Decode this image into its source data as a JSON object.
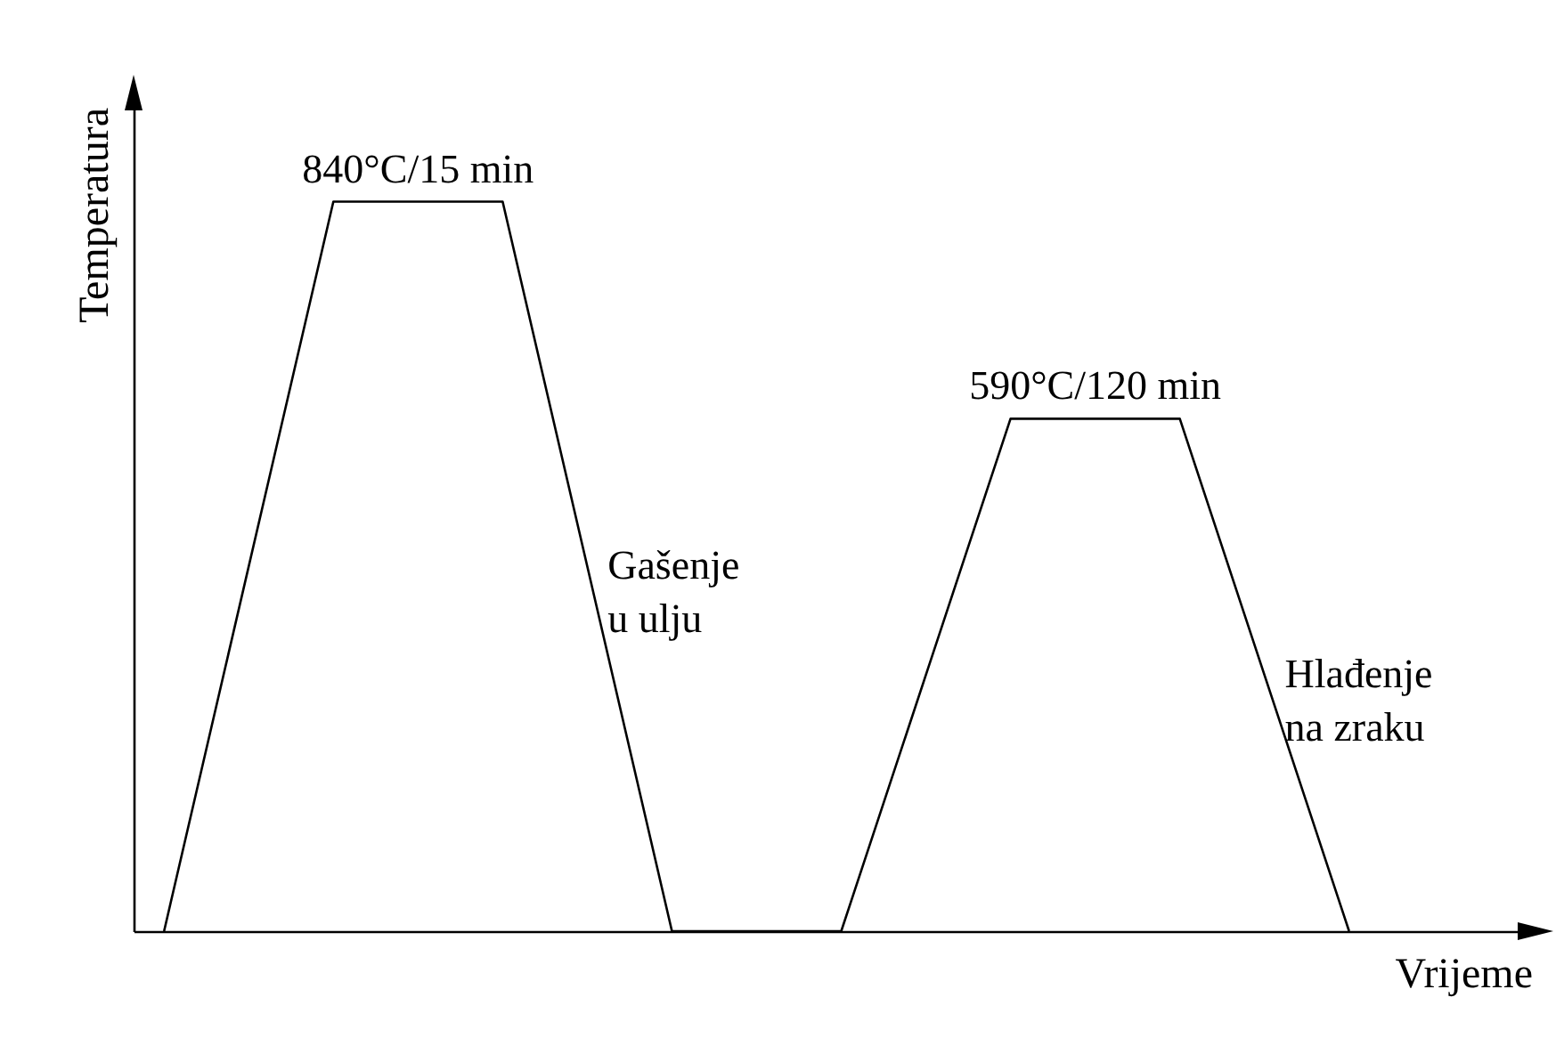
{
  "chart_data": {
    "type": "line",
    "tick_labels": false,
    "xlabel": "Vrijeme",
    "ylabel": "Temperatura",
    "color": "#000000",
    "categories": [
      null,
      null,
      null,
      null,
      null,
      null,
      null,
      null
    ],
    "values": [
      0,
      840,
      840,
      0,
      0,
      590,
      590,
      0
    ],
    "value_labels": [
      null,
      "840°C/15 min",
      null,
      null,
      null,
      "590°C/120 min",
      null,
      null
    ],
    "annotations": [
      "Gašenje\nu ulju",
      "Hlađenje\nna zraku"
    ]
  }
}
